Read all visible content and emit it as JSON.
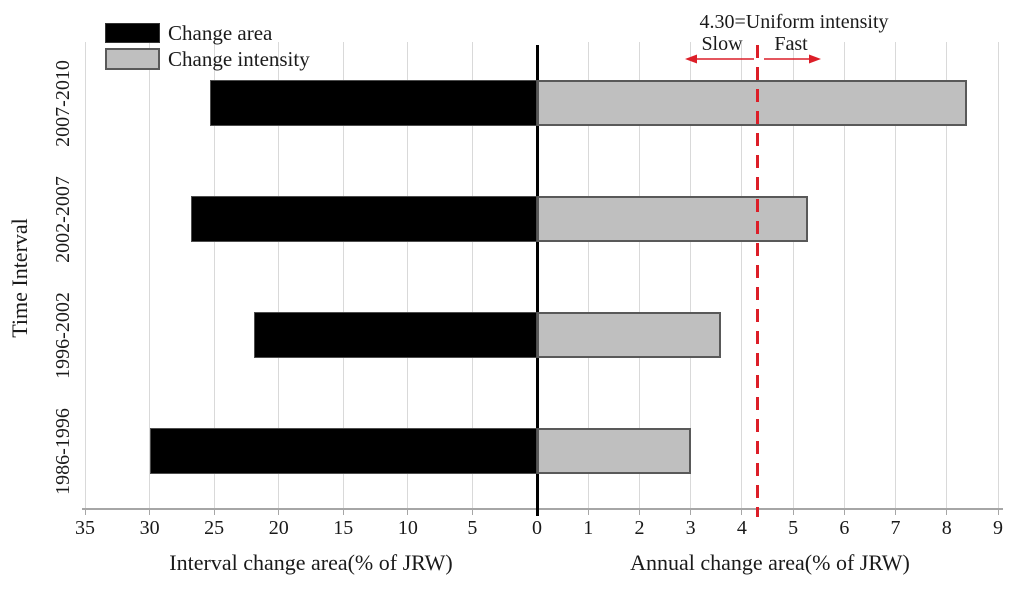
{
  "chart_data": {
    "type": "bar",
    "orientation": "horizontal-diverging",
    "categories": [
      "2007-2010",
      "2002-2007",
      "1996-2002",
      "1986-1996"
    ],
    "series": [
      {
        "name": "Change area",
        "axis": "left",
        "color": "#000000",
        "values": [
          25.3,
          26.8,
          21.9,
          30.0
        ]
      },
      {
        "name": "Change intensity",
        "axis": "right",
        "color": "#bfbfbf",
        "values": [
          8.4,
          5.3,
          3.6,
          3.0
        ]
      }
    ],
    "left_axis": {
      "label": "Interval change area(% of JRW)",
      "ticks": [
        35,
        30,
        25,
        20,
        15,
        10,
        5,
        0
      ],
      "range": [
        0,
        35
      ],
      "direction": "reversed"
    },
    "right_axis": {
      "label": "Annual change area(% of JRW)",
      "ticks": [
        0,
        1,
        2,
        3,
        4,
        5,
        6,
        7,
        8,
        9
      ],
      "range": [
        0,
        9
      ]
    },
    "y_axis_label": "Time Interval",
    "grid": true,
    "reference_line": {
      "value": 4.3,
      "color": "#dc1e28",
      "style": "dashed",
      "label": "4.30=Uniform intensity",
      "slow_label": "Slow",
      "fast_label": "Fast"
    }
  },
  "legend": {
    "position": "top-left",
    "items": [
      {
        "label": "Change area",
        "color": "#000000"
      },
      {
        "label": "Change intensity",
        "color": "#bfbfbf"
      }
    ]
  },
  "colors": {
    "grid": "#d9d9d9",
    "axis_line": "#a6a6a6",
    "zero_line": "#000000",
    "bar_border": "#595959",
    "reference_red": "#dc1e28"
  }
}
